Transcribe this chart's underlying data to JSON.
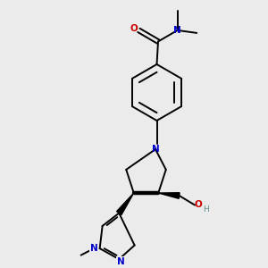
{
  "background_color": "#ebebeb",
  "bond_color": "#000000",
  "atom_colors": {
    "O": "#cc0000",
    "N": "#0000cc",
    "H": "#5a8a8a",
    "C": "#000000"
  },
  "figsize": [
    3.0,
    3.0
  ],
  "dpi": 100,
  "xlim": [
    0,
    10
  ],
  "ylim": [
    0,
    10
  ]
}
